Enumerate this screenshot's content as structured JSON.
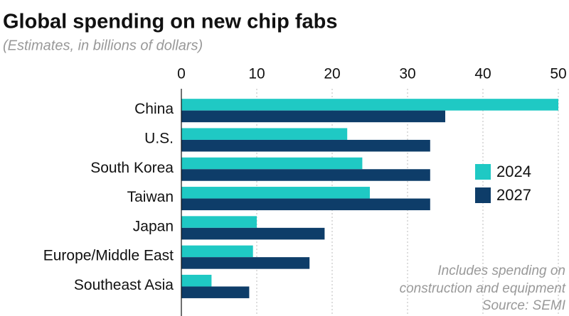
{
  "chart_data": {
    "type": "bar",
    "orientation": "horizontal",
    "title": "Global spending on new chip fabs",
    "subtitle": "(Estimates, in billions of dollars)",
    "categories": [
      "China",
      "U.S.",
      "South Korea",
      "Taiwan",
      "Japan",
      "Europe/Middle East",
      "Southeast Asia"
    ],
    "series": [
      {
        "name": "2024",
        "color": "#1fc9c4",
        "values": [
          50,
          22,
          24,
          25,
          10,
          9.5,
          4
        ]
      },
      {
        "name": "2027",
        "color": "#0e3d69",
        "values": [
          35,
          33,
          33,
          33,
          19,
          17,
          9
        ]
      }
    ],
    "xlim": [
      0,
      50
    ],
    "xticks": [
      0,
      10,
      20,
      30,
      40,
      50
    ],
    "grid": true,
    "note": [
      "Includes spending on",
      "construction and equipment"
    ],
    "source": "Source: SEMI"
  }
}
